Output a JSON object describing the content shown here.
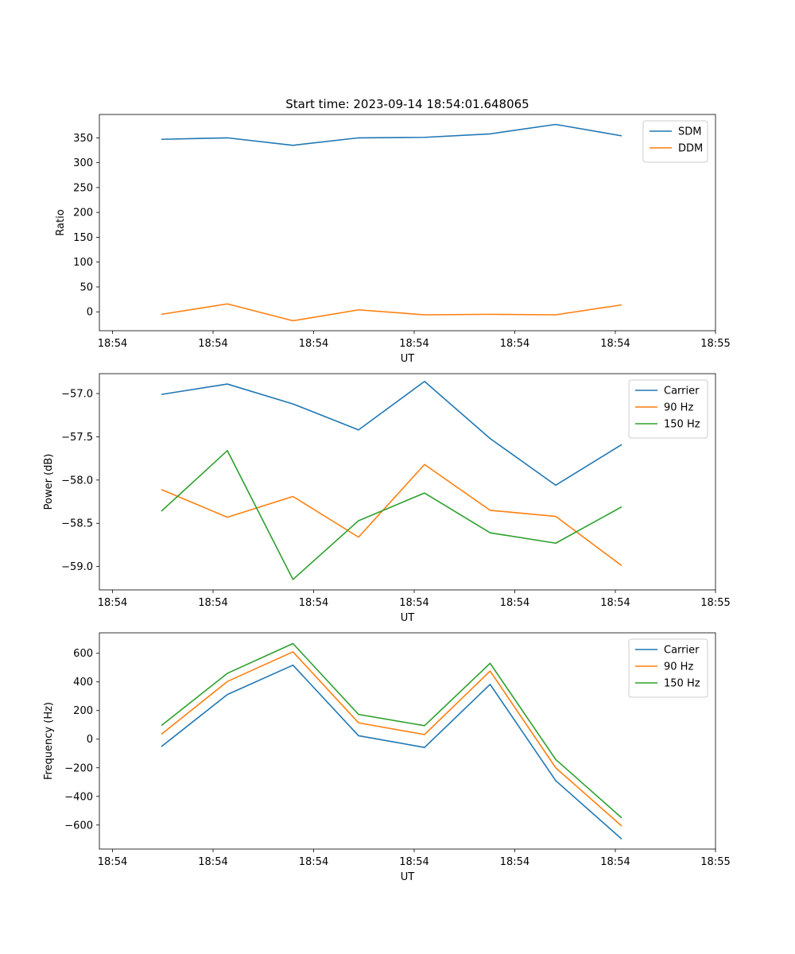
{
  "chart_data": [
    {
      "type": "line",
      "title": "Start time: 2023-09-14 18:54:01.648065",
      "xlabel": "UT",
      "ylabel": "Ratio",
      "x_tick_labels": [
        "18:54",
        "18:54",
        "18:54",
        "18:54",
        "18:54",
        "18:54",
        "18:55"
      ],
      "y_ticks": [
        0,
        50,
        100,
        150,
        200,
        250,
        300,
        350
      ],
      "y_tick_labels": [
        "0",
        "50",
        "100",
        "150",
        "200",
        "250",
        "300",
        "350"
      ],
      "ylim": [
        -38,
        397
      ],
      "legend_position": "top-right",
      "series": [
        {
          "name": "SDM",
          "color": "#1f77b4",
          "values": [
            347,
            350,
            335,
            350,
            351,
            358,
            377,
            354
          ]
        },
        {
          "name": "DDM",
          "color": "#ff7f0e",
          "values": [
            -5,
            16,
            -18,
            4,
            -6,
            -5,
            -6,
            14
          ]
        }
      ]
    },
    {
      "type": "line",
      "title": "",
      "xlabel": "UT",
      "ylabel": "Power (dB)",
      "x_tick_labels": [
        "18:54",
        "18:54",
        "18:54",
        "18:54",
        "18:54",
        "18:54",
        "18:55"
      ],
      "y_ticks": [
        -59.0,
        -58.5,
        -58.0,
        -57.5,
        -57.0
      ],
      "y_tick_labels": [
        "−59.0",
        "−58.5",
        "−58.0",
        "−57.5",
        "−57.0"
      ],
      "ylim": [
        -59.27,
        -56.77
      ],
      "legend_position": "top-right",
      "series": [
        {
          "name": "Carrier",
          "color": "#1f77b4",
          "values": [
            -57.01,
            -56.89,
            -57.12,
            -57.42,
            -56.86,
            -57.52,
            -58.06,
            -57.59
          ]
        },
        {
          "name": "90 Hz",
          "color": "#ff7f0e",
          "values": [
            -58.11,
            -58.43,
            -58.19,
            -58.66,
            -57.82,
            -58.35,
            -58.42,
            -58.99
          ]
        },
        {
          "name": "150 Hz",
          "color": "#2ca02c",
          "values": [
            -58.36,
            -57.66,
            -59.15,
            -58.47,
            -58.15,
            -58.61,
            -58.73,
            -58.31
          ]
        }
      ]
    },
    {
      "type": "line",
      "title": "",
      "xlabel": "UT",
      "ylabel": "Frequency (Hz)",
      "x_tick_labels": [
        "18:54",
        "18:54",
        "18:54",
        "18:54",
        "18:54",
        "18:54",
        "18:55"
      ],
      "y_ticks": [
        -600,
        -400,
        -200,
        0,
        200,
        400,
        600
      ],
      "y_tick_labels": [
        "−600",
        "−400",
        "−200",
        "0",
        "200",
        "400",
        "600"
      ],
      "ylim": [
        -768,
        743
      ],
      "legend_position": "top-right",
      "series": [
        {
          "name": "Carrier",
          "color": "#1f77b4",
          "values": [
            -52,
            312,
            517,
            24,
            -58,
            383,
            -290,
            -698
          ]
        },
        {
          "name": "90 Hz",
          "color": "#ff7f0e",
          "values": [
            34,
            403,
            610,
            114,
            32,
            476,
            -200,
            -607
          ]
        },
        {
          "name": "150 Hz",
          "color": "#2ca02c",
          "values": [
            95,
            460,
            668,
            173,
            94,
            530,
            -142,
            -550
          ]
        }
      ]
    }
  ]
}
